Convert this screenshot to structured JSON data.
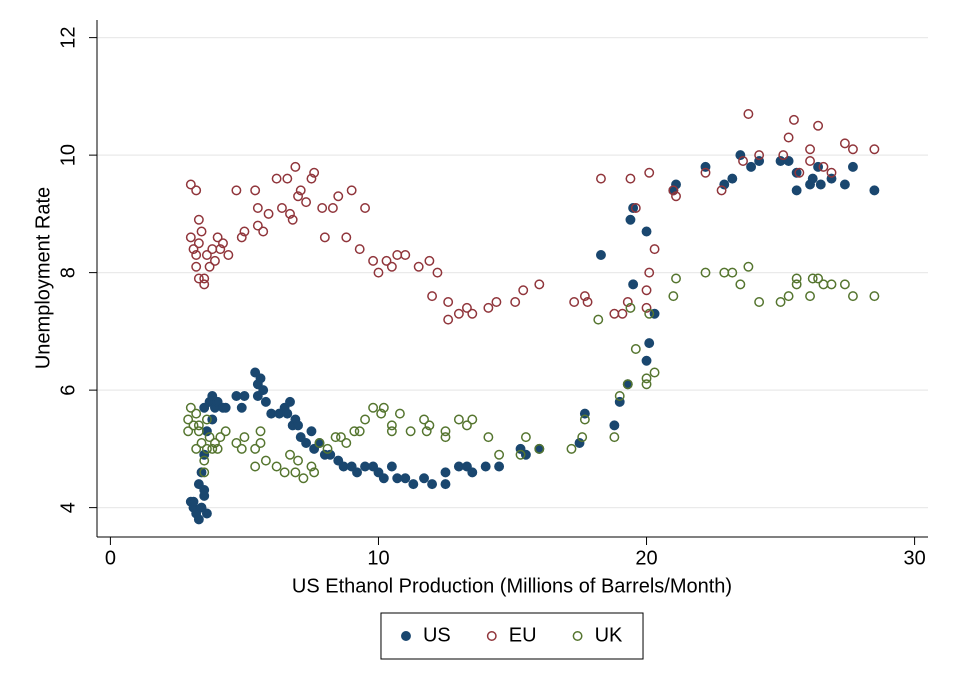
{
  "chart_data": {
    "type": "scatter",
    "x_label": "US Ethanol Production (Millions of Barrels/Month)",
    "y_label": "Unemployment Rate",
    "xlim": [
      -0.5,
      30.5
    ],
    "xticks": [
      0,
      10,
      20,
      30
    ],
    "ylim": [
      3.5,
      12.3
    ],
    "yticks": [
      4,
      6,
      8,
      10,
      12
    ],
    "grid": true,
    "legend": "bottom",
    "series": [
      {
        "name": "US",
        "color": "#1a476f",
        "marker": "filled",
        "x": [
          3,
          3.1,
          3.2,
          3.3,
          3.4,
          3.5,
          3.6,
          3.3,
          3.5,
          3.1,
          3.4,
          3.5,
          3.6,
          3.5,
          3.7,
          3.8,
          3.9,
          4.0,
          4.2,
          4.3,
          3.8,
          4.7,
          4.9,
          5.0,
          5.4,
          5.5,
          5.6,
          5.7,
          5.5,
          5.8,
          6.0,
          6.3,
          6.5,
          6.6,
          6.7,
          6.8,
          6.9,
          7.0,
          7.1,
          7.3,
          7.5,
          7.6,
          7.8,
          8.0,
          8.2,
          8.5,
          8.7,
          9.0,
          9.2,
          9.5,
          9.8,
          10.0,
          10.2,
          10.5,
          10.7,
          11.0,
          11.3,
          11.7,
          12.0,
          12.5,
          12.5,
          13.0,
          13.3,
          13.5,
          14.0,
          14.5,
          15.3,
          15.5,
          16.0,
          17.5,
          17.7,
          18.3,
          18.8,
          19.0,
          19.3,
          19.5,
          19.4,
          19.5,
          20.0,
          20.1,
          20.0,
          20.3,
          21.0,
          21.1,
          22.2,
          22.9,
          23.2,
          23.5,
          23.9,
          24.2,
          25.0,
          25.3,
          25.6,
          25.6,
          26.1,
          26.2,
          26.4,
          26.5,
          26.9,
          27.4,
          27.7,
          28.5
        ],
        "values": [
          4.1,
          4.0,
          3.9,
          3.8,
          4.0,
          4.2,
          3.9,
          4.4,
          4.3,
          4.1,
          4.6,
          4.9,
          5.3,
          5.7,
          5.8,
          5.9,
          5.7,
          5.8,
          5.7,
          5.7,
          5.5,
          5.9,
          5.7,
          5.9,
          6.3,
          6.1,
          6.2,
          6.0,
          5.9,
          5.8,
          5.6,
          5.6,
          5.7,
          5.6,
          5.8,
          5.4,
          5.5,
          5.4,
          5.2,
          5.1,
          5.3,
          5.0,
          5.1,
          4.9,
          4.9,
          4.8,
          4.7,
          4.7,
          4.6,
          4.7,
          4.7,
          4.6,
          4.5,
          4.7,
          4.5,
          4.5,
          4.4,
          4.5,
          4.4,
          4.4,
          4.6,
          4.7,
          4.7,
          4.6,
          4.7,
          4.7,
          5.0,
          4.9,
          5.0,
          5.1,
          5.6,
          8.3,
          5.4,
          5.8,
          6.1,
          7.8,
          8.9,
          9.1,
          6.5,
          6.8,
          8.7,
          7.3,
          9.4,
          9.5,
          9.8,
          9.5,
          9.6,
          10.0,
          9.8,
          9.9,
          9.9,
          9.9,
          9.7,
          9.4,
          9.5,
          9.6,
          9.8,
          9.5,
          9.6,
          9.5,
          9.8,
          9.4
        ]
      },
      {
        "name": "EU",
        "color": "#90353b",
        "marker": "hollow",
        "x": [
          3.0,
          3.0,
          3.2,
          3.1,
          3.2,
          3.2,
          3.3,
          3.3,
          3.4,
          3.3,
          3.5,
          3.5,
          3.6,
          3.7,
          3.8,
          3.9,
          4.0,
          4.1,
          4.2,
          4.4,
          4.7,
          4.9,
          5.0,
          5.4,
          5.5,
          5.5,
          5.7,
          5.9,
          6.2,
          6.4,
          6.6,
          6.7,
          6.8,
          6.9,
          7.0,
          7.1,
          7.3,
          7.5,
          7.6,
          7.9,
          8.0,
          8.3,
          8.5,
          8.8,
          9.0,
          9.3,
          9.5,
          9.8,
          10.0,
          10.3,
          10.5,
          10.7,
          11.0,
          11.5,
          11.9,
          12.0,
          12.2,
          12.6,
          12.6,
          13.0,
          13.3,
          13.5,
          14.1,
          14.4,
          15.1,
          15.4,
          16.0,
          17.3,
          17.7,
          17.8,
          18.3,
          18.8,
          19.1,
          19.3,
          19.4,
          19.6,
          20.0,
          20.0,
          20.1,
          20.1,
          20.3,
          21.0,
          21.1,
          22.2,
          22.8,
          23.6,
          23.8,
          24.2,
          25.1,
          25.3,
          25.5,
          25.7,
          26.1,
          26.1,
          26.4,
          26.6,
          26.9,
          27.4,
          27.7,
          28.5
        ],
        "values": [
          8.6,
          9.5,
          9.4,
          8.4,
          8.3,
          8.1,
          8.5,
          8.9,
          8.7,
          7.9,
          7.8,
          7.9,
          8.3,
          8.1,
          8.4,
          8.2,
          8.6,
          8.4,
          8.5,
          8.3,
          9.4,
          8.6,
          8.7,
          9.4,
          9.1,
          8.8,
          8.7,
          9.0,
          9.6,
          9.1,
          9.6,
          9.0,
          8.9,
          9.8,
          9.3,
          9.4,
          9.2,
          9.6,
          9.7,
          9.1,
          8.6,
          9.1,
          9.3,
          8.6,
          9.4,
          8.4,
          9.1,
          8.2,
          8.0,
          8.2,
          8.1,
          8.3,
          8.3,
          8.1,
          8.2,
          7.6,
          8.0,
          7.2,
          7.5,
          7.3,
          7.4,
          7.3,
          7.4,
          7.5,
          7.5,
          7.7,
          7.8,
          7.5,
          7.6,
          7.5,
          9.6,
          7.3,
          7.3,
          7.5,
          9.6,
          9.1,
          7.7,
          7.4,
          8.0,
          9.7,
          8.4,
          9.4,
          9.3,
          9.7,
          9.4,
          9.9,
          10.7,
          10.0,
          10.0,
          10.3,
          10.6,
          9.7,
          10.1,
          9.9,
          10.5,
          9.8,
          9.7,
          10.2,
          10.1,
          10.1
        ]
      },
      {
        "name": "UK",
        "color": "#55752f",
        "marker": "hollow",
        "x": [
          2.9,
          2.9,
          3.0,
          3.1,
          3.2,
          3.2,
          3.3,
          3.3,
          3.4,
          3.5,
          3.5,
          3.6,
          3.6,
          3.7,
          3.8,
          3.9,
          4.0,
          4.1,
          4.3,
          4.7,
          4.9,
          5.0,
          5.4,
          5.4,
          5.6,
          5.6,
          5.8,
          6.2,
          6.5,
          6.7,
          6.9,
          7.0,
          7.2,
          7.5,
          7.6,
          7.8,
          8.1,
          8.4,
          8.6,
          8.8,
          9.1,
          9.3,
          9.5,
          9.8,
          10.1,
          10.2,
          10.5,
          10.5,
          10.8,
          11.2,
          11.7,
          11.9,
          11.8,
          12.5,
          12.5,
          13.0,
          13.3,
          13.5,
          14.1,
          14.5,
          15.3,
          15.5,
          16.0,
          17.2,
          17.6,
          17.7,
          18.2,
          18.8,
          19.0,
          19.3,
          19.4,
          19.6,
          20.0,
          20.0,
          20.1,
          20.3,
          21.0,
          21.1,
          22.2,
          22.9,
          23.2,
          23.5,
          23.8,
          24.2,
          25.0,
          25.3,
          25.6,
          25.6,
          26.1,
          26.2,
          26.4,
          26.6,
          26.9,
          27.4,
          27.7,
          28.5
        ],
        "values": [
          5.3,
          5.5,
          5.7,
          5.4,
          5.6,
          5.0,
          5.4,
          5.3,
          5.1,
          4.6,
          4.8,
          5.5,
          5.0,
          5.2,
          5.0,
          5.1,
          5.0,
          5.2,
          5.3,
          5.1,
          5.0,
          5.2,
          4.7,
          5.0,
          5.3,
          5.1,
          4.8,
          4.7,
          4.6,
          4.9,
          4.6,
          4.8,
          4.5,
          4.7,
          4.6,
          5.1,
          5.0,
          5.2,
          5.2,
          5.1,
          5.3,
          5.3,
          5.5,
          5.7,
          5.6,
          5.7,
          5.3,
          5.4,
          5.6,
          5.3,
          5.5,
          5.4,
          5.3,
          5.3,
          5.2,
          5.5,
          5.4,
          5.5,
          5.2,
          4.9,
          4.9,
          5.2,
          5.0,
          5.0,
          5.2,
          5.5,
          7.2,
          5.2,
          5.9,
          6.1,
          7.4,
          6.7,
          6.1,
          6.2,
          7.3,
          6.3,
          7.6,
          7.9,
          8.0,
          8.0,
          8.0,
          7.8,
          8.1,
          7.5,
          7.5,
          7.6,
          7.9,
          7.8,
          7.6,
          7.9,
          7.9,
          7.8,
          7.8,
          7.8,
          7.6,
          7.6
        ]
      }
    ]
  }
}
